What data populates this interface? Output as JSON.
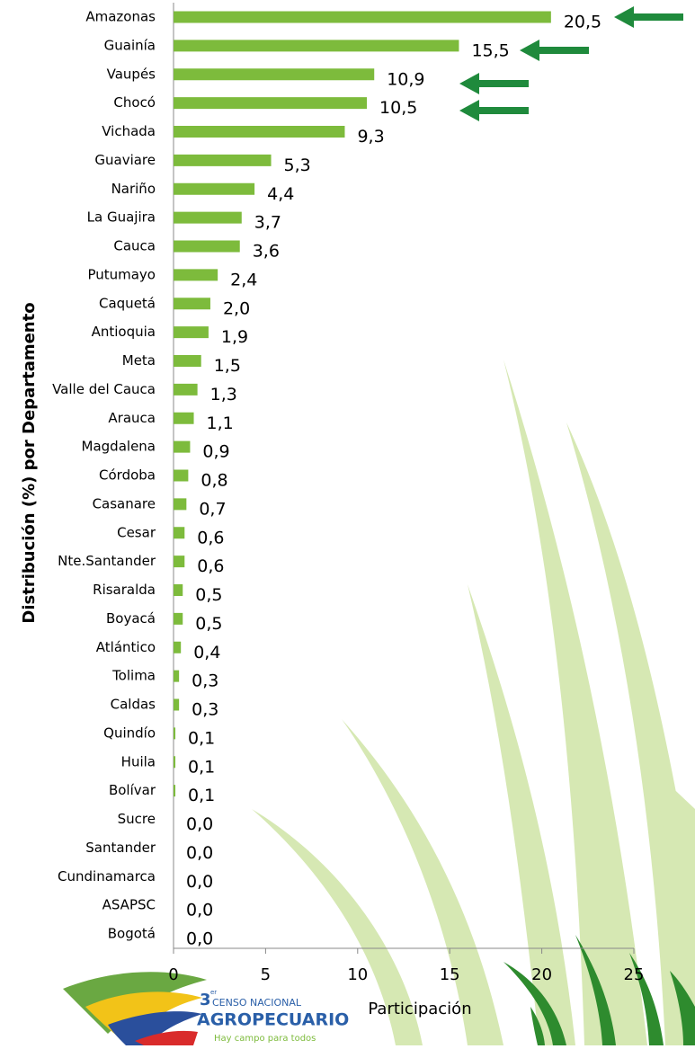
{
  "chart_data": {
    "type": "barh",
    "categories": [
      "Amazonas",
      "Guainía",
      "Vaupés",
      "Chocó",
      "Vichada",
      "Guaviare",
      "Nariño",
      "La Guajira",
      "Cauca",
      "Putumayo",
      "Caquetá",
      "Antioquia",
      "Meta",
      "Valle del Cauca",
      "Arauca",
      "Magdalena",
      "Córdoba",
      "Casanare",
      "Cesar",
      "Nte.Santander",
      "Risaralda",
      "Boyacá",
      "Atlántico",
      "Tolima",
      "Caldas",
      "Quindío",
      "Huila",
      "Bolívar",
      "Sucre",
      "Santander",
      "Cundinamarca",
      "ASAPSC",
      "Bogotá"
    ],
    "values": [
      20.5,
      15.5,
      10.9,
      10.5,
      9.3,
      5.3,
      4.4,
      3.7,
      3.6,
      2.4,
      2.0,
      1.9,
      1.5,
      1.3,
      1.1,
      0.9,
      0.8,
      0.7,
      0.6,
      0.6,
      0.5,
      0.5,
      0.4,
      0.3,
      0.3,
      0.1,
      0.1,
      0.1,
      0.0,
      0.0,
      0.0,
      0.0,
      0.0
    ],
    "value_labels": [
      "20,5",
      "15,5",
      "10,9",
      "10,5",
      "9,3",
      "5,3",
      "4,4",
      "3,7",
      "3,6",
      "2,4",
      "2,0",
      "1,9",
      "1,5",
      "1,3",
      "1,1",
      "0,9",
      "0,8",
      "0,7",
      "0,6",
      "0,6",
      "0,5",
      "0,5",
      "0,4",
      "0,3",
      "0,3",
      "0,1",
      "0,1",
      "0,1",
      "0,0",
      "0,0",
      "0,0",
      "0,0",
      "0,0"
    ],
    "color": "#7dbb3c",
    "xlim": [
      0,
      25
    ],
    "xticks": [
      0,
      5,
      10,
      15,
      20,
      25
    ],
    "grid": false,
    "x_label": "Participación",
    "y_label": "Distribución (%) por Departamento"
  },
  "logo": {
    "number": "3",
    "ordinal": "er",
    "line1": "CENSO NACIONAL",
    "line2": "AGROPECUARIO",
    "slogan": "Hay campo para todos"
  }
}
